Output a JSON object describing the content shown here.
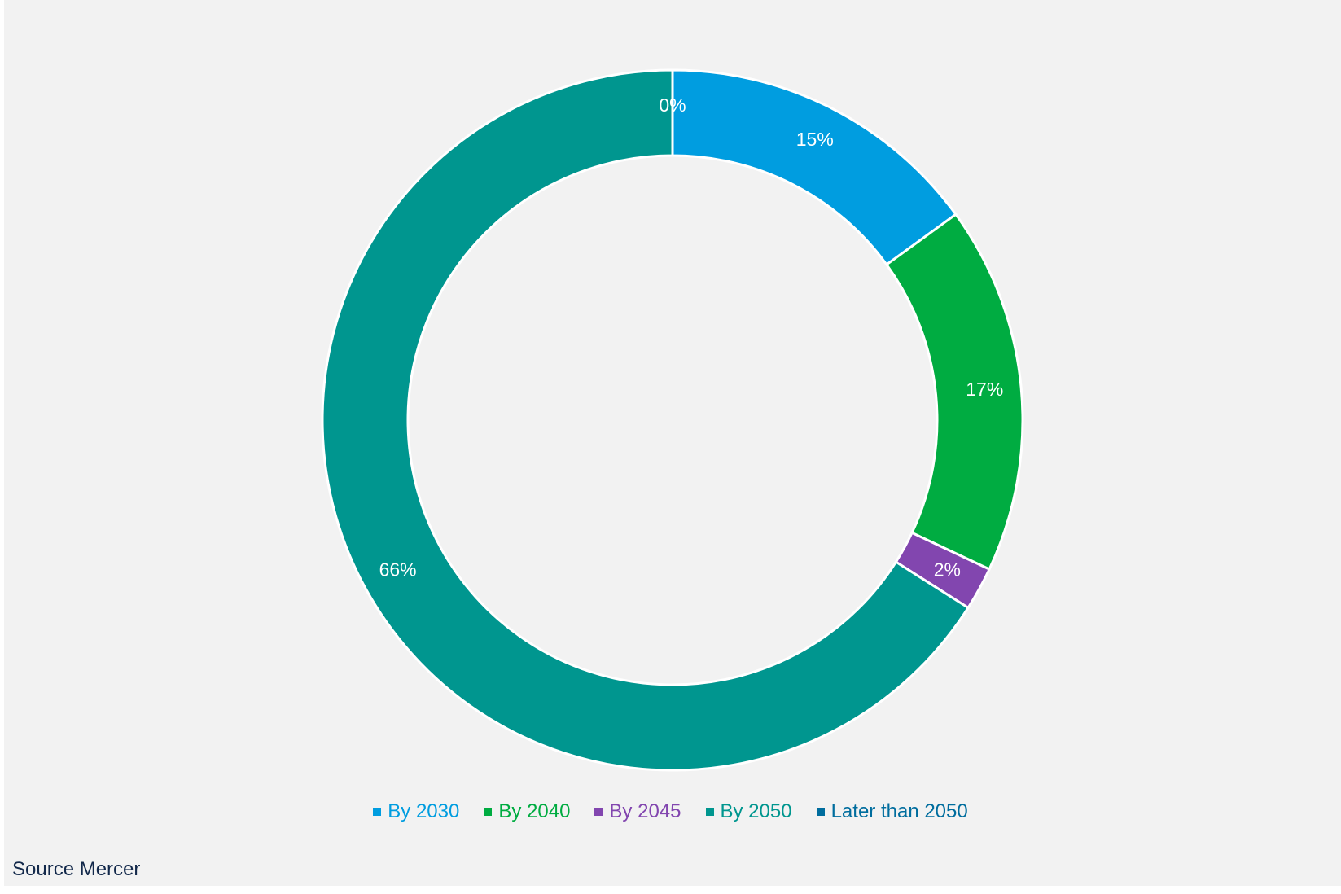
{
  "chart_data": {
    "type": "pie",
    "variant": "donut",
    "categories": [
      "By 2030",
      "By 2040",
      "By 2045",
      "By 2050",
      "Later than 2050"
    ],
    "values": [
      15,
      17,
      2,
      66,
      0
    ],
    "labels": [
      "15%",
      "17%",
      "2%",
      "66%",
      "0%"
    ],
    "colors": [
      "#009de0",
      "#00ac41",
      "#8246af",
      "#00968f",
      "#006d9e"
    ],
    "legend_position": "bottom"
  },
  "source": "Source Mercer"
}
